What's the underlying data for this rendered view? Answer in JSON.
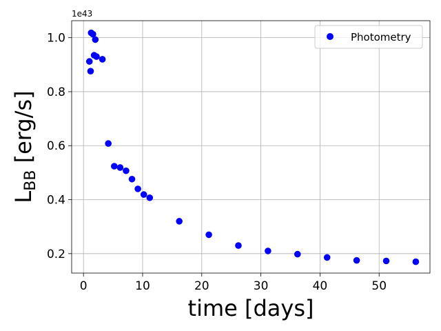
{
  "chart_data": {
    "type": "scatter",
    "xlabel": "time [days]",
    "ylabel_main": "L",
    "ylabel_sub": "BB",
    "ylabel_unit": " [erg/s]",
    "y_offset_label": "1e43",
    "xlim": [
      -2,
      58.6
    ],
    "ylim": [
      0.128,
      1.063
    ],
    "x_ticks": [
      0,
      10,
      20,
      30,
      40,
      50
    ],
    "y_ticks": [
      0.2,
      0.4,
      0.6,
      0.8,
      1.0
    ],
    "x_tick_labels": [
      "0",
      "10",
      "20",
      "30",
      "40",
      "50"
    ],
    "y_tick_labels": [
      "0.2",
      "0.4",
      "0.6",
      "0.8",
      "1.0"
    ],
    "grid": true,
    "legend_position": "top-right",
    "marker_color": "#0000ff",
    "series": [
      {
        "name": "Photometry",
        "points": [
          {
            "x": 1.0,
            "y": 0.912
          },
          {
            "x": 1.2,
            "y": 0.876
          },
          {
            "x": 1.3,
            "y": 1.018
          },
          {
            "x": 1.6,
            "y": 1.013
          },
          {
            "x": 1.8,
            "y": 0.935
          },
          {
            "x": 2.0,
            "y": 0.993
          },
          {
            "x": 2.2,
            "y": 0.93
          },
          {
            "x": 3.2,
            "y": 0.92
          },
          {
            "x": 4.2,
            "y": 0.608
          },
          {
            "x": 5.2,
            "y": 0.524
          },
          {
            "x": 6.2,
            "y": 0.519
          },
          {
            "x": 7.2,
            "y": 0.507
          },
          {
            "x": 8.2,
            "y": 0.476
          },
          {
            "x": 9.2,
            "y": 0.44
          },
          {
            "x": 10.2,
            "y": 0.419
          },
          {
            "x": 11.2,
            "y": 0.407
          },
          {
            "x": 16.2,
            "y": 0.32
          },
          {
            "x": 21.2,
            "y": 0.27
          },
          {
            "x": 26.2,
            "y": 0.23
          },
          {
            "x": 31.2,
            "y": 0.21
          },
          {
            "x": 36.2,
            "y": 0.198
          },
          {
            "x": 41.2,
            "y": 0.186
          },
          {
            "x": 46.2,
            "y": 0.175
          },
          {
            "x": 51.2,
            "y": 0.173
          },
          {
            "x": 56.2,
            "y": 0.17
          }
        ]
      }
    ]
  }
}
